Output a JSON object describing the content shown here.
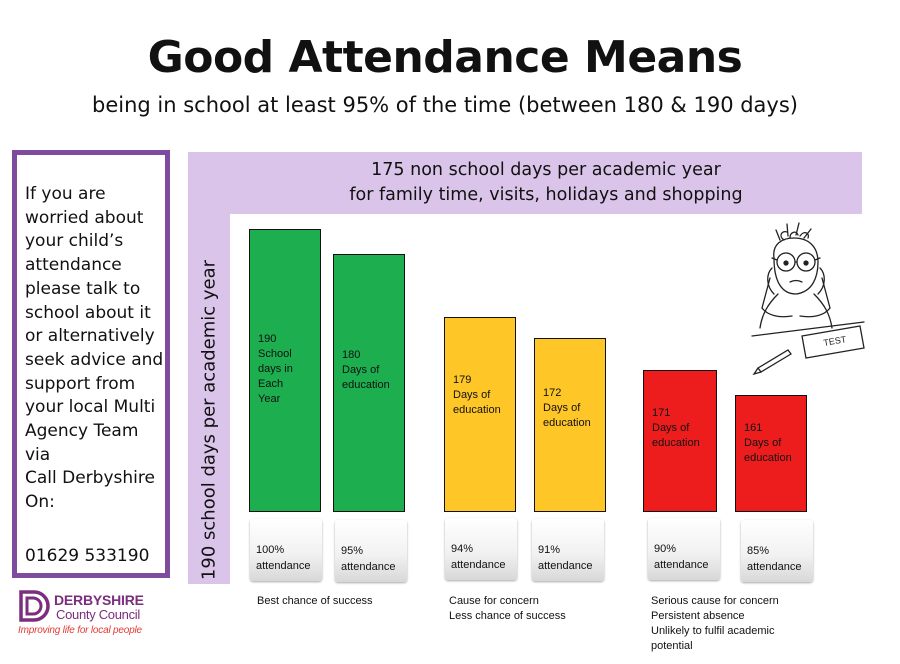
{
  "title": "Good Attendance Means",
  "subtitle": "being in school at least 95% of the time (between 180 & 190 days)",
  "info_box": {
    "lines": [
      "If you are",
      "worried about",
      "your child’s",
      "attendance",
      "please talk to",
      "school about it",
      "or alternatively",
      "seek advice and",
      "support from",
      "your local Multi",
      "Agency Team",
      "via",
      "Call Derbyshire",
      "On:"
    ],
    "phone": "01629 533190"
  },
  "logo": {
    "name_line1": "DERBYSHIRE",
    "name_line2": "County Council",
    "tagline": "Improving life for local people",
    "brand_color": "#7b2d7e",
    "tagline_color": "#e53935"
  },
  "band": {
    "line1": "175 non school days per academic  year",
    "line2": "for family time, visits, holidays and shopping"
  },
  "side_label": "190 school days per academic year",
  "colors": {
    "green": "#1cae4f",
    "yellow": "#fec627",
    "red": "#ee1d1d",
    "band": "#dac4e9",
    "frame": "#7e4c9e"
  },
  "bars": [
    {
      "lines": [
        "190",
        "School",
        "days in",
        "Each",
        "Year"
      ],
      "attendance": "100%",
      "attendance_label": "attendance"
    },
    {
      "lines": [
        "180",
        "Days of",
        "education"
      ],
      "attendance": "95%",
      "attendance_label": "attendance"
    },
    {
      "lines": [
        "179",
        "Days of",
        "education"
      ],
      "attendance": "94%",
      "attendance_label": "attendance"
    },
    {
      "lines": [
        "172",
        "Days of",
        "education"
      ],
      "attendance": "91%",
      "attendance_label": "attendance"
    },
    {
      "lines": [
        "171",
        "Days of",
        "education"
      ],
      "attendance": "90%",
      "attendance_label": "attendance"
    },
    {
      "lines": [
        "161",
        "Days of",
        "education"
      ],
      "attendance": "85%",
      "attendance_label": "attendance"
    }
  ],
  "notes": {
    "green": [
      "Best chance of success"
    ],
    "yellow": [
      "Cause for concern",
      "Less chance of success"
    ],
    "red": [
      "Serious cause for concern",
      "Persistent absence",
      "Unlikely to fulfil academic",
      "potential"
    ]
  },
  "cartoon": {
    "test_paper_text": "TEST"
  }
}
